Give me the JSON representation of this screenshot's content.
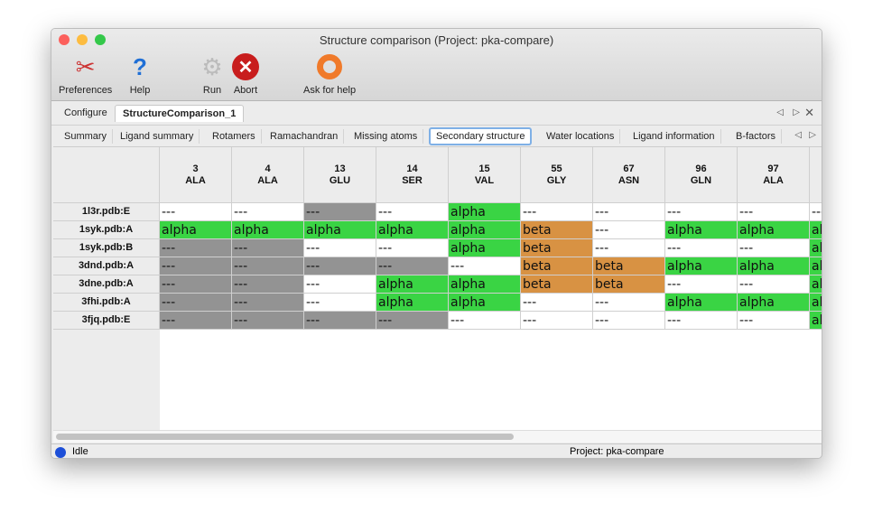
{
  "window": {
    "title": "Structure comparison (Project: pka-compare)"
  },
  "toolbar": {
    "preferences": "Preferences",
    "help": "Help",
    "run": "Run",
    "abort": "Abort",
    "ask": "Ask for help"
  },
  "tabs": [
    "Configure",
    "StructureComparison_1"
  ],
  "subtabs": [
    "Summary",
    "Ligand summary",
    "Rotamers",
    "Ramachandran",
    "Missing atoms",
    "Secondary structure",
    "Water locations",
    "Ligand information",
    "B-factors"
  ],
  "active_subtab": "Secondary structure",
  "table": {
    "columns": [
      {
        "num": "3",
        "res": "ALA"
      },
      {
        "num": "4",
        "res": "ALA"
      },
      {
        "num": "13",
        "res": "GLU"
      },
      {
        "num": "14",
        "res": "SER"
      },
      {
        "num": "15",
        "res": "VAL"
      },
      {
        "num": "55",
        "res": "GLY"
      },
      {
        "num": "67",
        "res": "ASN"
      },
      {
        "num": "96",
        "res": "GLN"
      },
      {
        "num": "97",
        "res": "ALA"
      },
      {
        "num": "",
        "res": ""
      }
    ],
    "rows": [
      {
        "label": "1l3r.pdb:E",
        "cells": [
          "-",
          "-",
          "g",
          "-",
          "a",
          "-",
          "-",
          "-",
          "-",
          "-"
        ]
      },
      {
        "label": "1syk.pdb:A",
        "cells": [
          "a",
          "a",
          "a",
          "a",
          "a",
          "b",
          "-",
          "a",
          "a",
          "a"
        ]
      },
      {
        "label": "1syk.pdb:B",
        "cells": [
          "g",
          "g",
          "-",
          "-",
          "a",
          "b",
          "-",
          "-",
          "-",
          "a"
        ]
      },
      {
        "label": "3dnd.pdb:A",
        "cells": [
          "g",
          "g",
          "g",
          "g",
          "-",
          "b",
          "b",
          "a",
          "a",
          "a"
        ]
      },
      {
        "label": "3dne.pdb:A",
        "cells": [
          "g",
          "g",
          "-",
          "a",
          "a",
          "b",
          "b",
          "-",
          "-",
          "a"
        ]
      },
      {
        "label": "3fhi.pdb:A",
        "cells": [
          "g",
          "g",
          "-",
          "a",
          "a",
          "-",
          "-",
          "a",
          "a",
          "a"
        ]
      },
      {
        "label": "3fjq.pdb:E",
        "cells": [
          "g",
          "g",
          "g",
          "g",
          "-",
          "-",
          "-",
          "-",
          "-",
          "a"
        ]
      }
    ],
    "legend": {
      "a": {
        "text": "alpha",
        "color": "#3ad444"
      },
      "b": {
        "text": "beta",
        "color": "#d89243"
      },
      "g": {
        "text": "---",
        "color": "#939393"
      },
      "-": {
        "text": "---",
        "color": "#ffffff"
      }
    }
  },
  "status": {
    "state": "Idle",
    "project": "Project: pka-compare"
  }
}
